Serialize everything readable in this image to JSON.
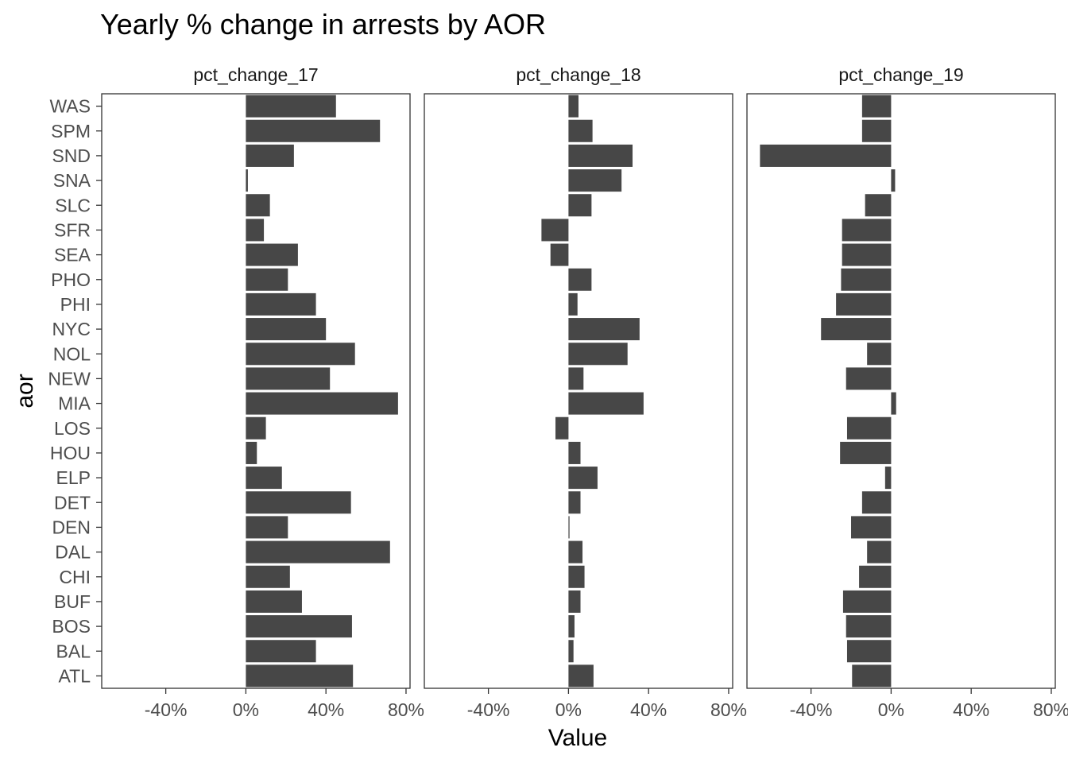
{
  "chart_data": {
    "type": "bar",
    "orientation": "horizontal",
    "title": "Yearly % change in arrests by AOR",
    "xlabel": "Value",
    "ylabel": "aor",
    "xlim": [
      -0.72,
      0.82
    ],
    "x_ticks": [
      -0.4,
      0.0,
      0.4,
      0.8
    ],
    "x_tick_labels": [
      "-40%",
      "0%",
      "40%",
      "80%"
    ],
    "bar_color": "#474747",
    "panel_border_color": "#333333",
    "grid": false,
    "categories": [
      "WAS",
      "SPM",
      "SND",
      "SNA",
      "SLC",
      "SFR",
      "SEA",
      "PHO",
      "PHI",
      "NYC",
      "NOL",
      "NEW",
      "MIA",
      "LOS",
      "HOU",
      "ELP",
      "DET",
      "DEN",
      "DAL",
      "CHI",
      "BUF",
      "BOS",
      "BAL",
      "ATL"
    ],
    "series": [
      {
        "name": "pct_change_17",
        "values": [
          0.45,
          0.67,
          0.24,
          0.01,
          0.12,
          0.09,
          0.26,
          0.21,
          0.35,
          0.4,
          0.545,
          0.42,
          0.76,
          0.1,
          0.055,
          0.18,
          0.525,
          0.21,
          0.72,
          0.22,
          0.28,
          0.53,
          0.35,
          0.535
        ]
      },
      {
        "name": "pct_change_18",
        "values": [
          0.05,
          0.12,
          0.32,
          0.265,
          0.115,
          -0.135,
          -0.09,
          0.115,
          0.045,
          0.355,
          0.295,
          0.075,
          0.375,
          -0.065,
          0.06,
          0.145,
          0.06,
          0.005,
          0.07,
          0.08,
          0.06,
          0.03,
          0.025,
          0.125
        ]
      },
      {
        "name": "pct_change_19",
        "values": [
          -0.145,
          -0.145,
          -0.655,
          0.02,
          -0.13,
          -0.245,
          -0.245,
          -0.25,
          -0.275,
          -0.35,
          -0.12,
          -0.225,
          0.025,
          -0.22,
          -0.255,
          -0.03,
          -0.145,
          -0.2,
          -0.12,
          -0.16,
          -0.24,
          -0.225,
          -0.22,
          -0.195
        ]
      }
    ]
  }
}
